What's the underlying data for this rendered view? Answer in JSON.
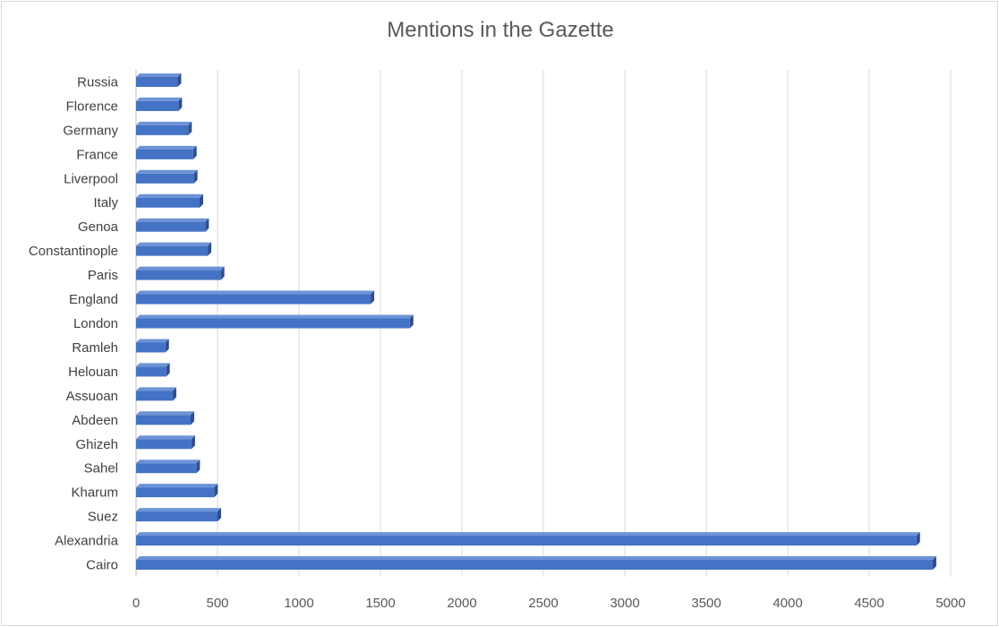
{
  "chart_data": {
    "type": "bar",
    "orientation": "horizontal",
    "title": "Mentions in the Gazette",
    "xlabel": "",
    "ylabel": "",
    "xlim": [
      0,
      5000
    ],
    "xticks": [
      0,
      500,
      1000,
      1500,
      2000,
      2500,
      3000,
      3500,
      4000,
      4500,
      5000
    ],
    "grid": "vertical",
    "legend": "none",
    "categories": [
      "Cairo",
      "Alexandria",
      "Suez",
      "Kharum",
      "Sahel",
      "Ghizeh",
      "Abdeen",
      "Assuoan",
      "Helouan",
      "Ramleh",
      "London",
      "England",
      "Paris",
      "Constantinople",
      "Genoa",
      "Italy",
      "Liverpool",
      "France",
      "Germany",
      "Florence",
      "Russia"
    ],
    "values": [
      4890,
      4790,
      500,
      480,
      370,
      340,
      335,
      225,
      185,
      180,
      1680,
      1440,
      520,
      440,
      425,
      390,
      355,
      350,
      320,
      260,
      255
    ],
    "colors": {
      "bar_front": "#4472c4",
      "bar_top": "#6d93d6",
      "bar_side": "#2f4f8a",
      "grid": "#d9d9d9",
      "axis": "#bfbfbf"
    }
  }
}
